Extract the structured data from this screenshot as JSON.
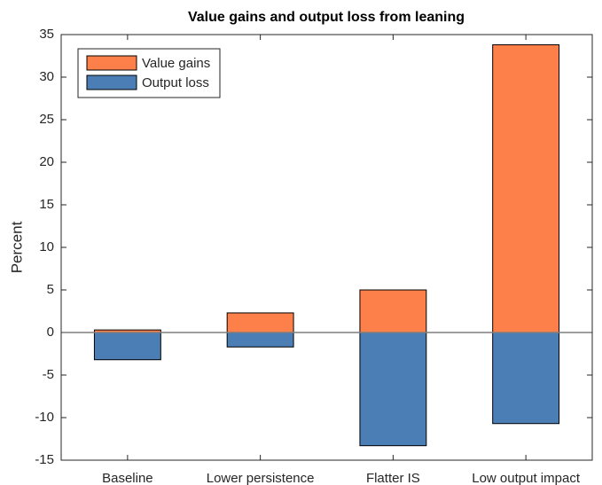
{
  "chart_data": {
    "type": "bar",
    "title": "Value gains and output loss from leaning",
    "y_label": "Percent",
    "categories": [
      "Baseline",
      "Lower persistence",
      "Flatter IS",
      "Low output impact"
    ],
    "series": [
      {
        "name": "Value gains",
        "color": "#fd7f4a",
        "values": [
          0.3,
          2.3,
          5.0,
          33.8
        ]
      },
      {
        "name": "Output loss",
        "color": "#4a7eb4",
        "values": [
          -3.2,
          -1.7,
          -13.3,
          -10.7
        ]
      }
    ],
    "ylim": [
      -15,
      35
    ],
    "yticks": [
      -15,
      -10,
      -5,
      0,
      5,
      10,
      15,
      20,
      25,
      30,
      35
    ],
    "legend": "upper left"
  }
}
